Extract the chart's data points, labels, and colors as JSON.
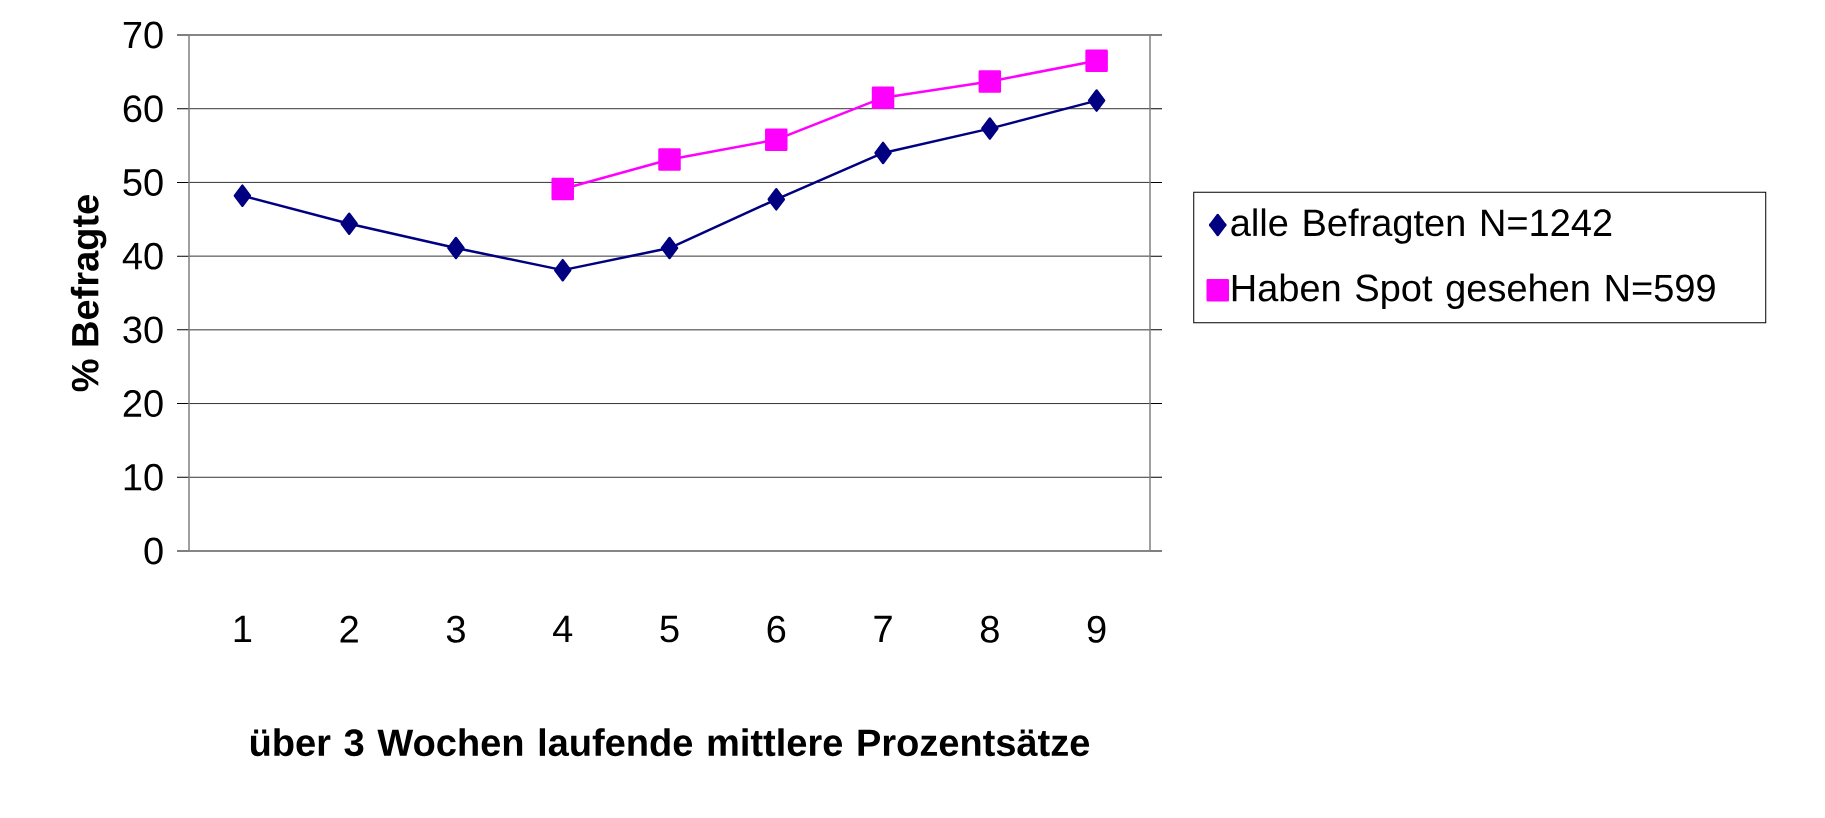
{
  "chart_data": {
    "type": "line",
    "xlabel": "über 3 Wochen laufende mittlere Prozentsätze",
    "ylabel": "% Befragte",
    "categories": [
      "1",
      "2",
      "3",
      "4",
      "5",
      "6",
      "7",
      "8",
      "9"
    ],
    "series": [
      {
        "name": "alle Befragten N=1242",
        "color": "#000080",
        "marker": "diamond",
        "values": [
          48.2,
          44.4,
          41.1,
          38.1,
          41.1,
          47.7,
          54.0,
          57.3,
          61.1
        ]
      },
      {
        "name": "Haben Spot gesehen N=599",
        "color": "#ff00ff",
        "marker": "square",
        "values": [
          null,
          null,
          null,
          49.1,
          53.1,
          55.8,
          61.5,
          63.7,
          66.5
        ]
      }
    ],
    "ylim": [
      0,
      70
    ],
    "yticks": [
      0,
      10,
      20,
      30,
      40,
      50,
      60,
      70
    ],
    "grid": "y",
    "legend": "right"
  }
}
